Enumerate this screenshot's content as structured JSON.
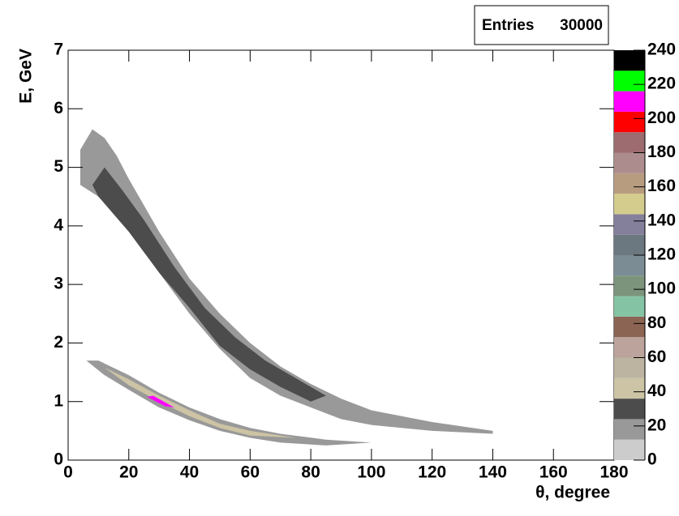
{
  "chart_data": {
    "type": "contour",
    "xlabel": "θ, degree",
    "ylabel": "E, GeV",
    "stats": {
      "label": "Entries",
      "value": 30000
    },
    "xlim": [
      0,
      180
    ],
    "xticks": [
      0,
      20,
      40,
      60,
      80,
      100,
      120,
      140,
      160,
      180
    ],
    "ylim": [
      0,
      7
    ],
    "yticks": [
      0,
      1,
      2,
      3,
      4,
      5,
      6,
      7
    ],
    "colorbar": {
      "levels": [
        0,
        12,
        24,
        36,
        48,
        60,
        72,
        84,
        96,
        108,
        120,
        132,
        144,
        156,
        168,
        180,
        192,
        204,
        216,
        228,
        240
      ],
      "colors": [
        "#cccccc",
        "#999999",
        "#4c4c4c",
        "#ccc4a4",
        "#bcb4a0",
        "#bca49c",
        "#8c6454",
        "#84c4a4",
        "#7c947c",
        "#7c8c94",
        "#6c7880",
        "#84809c",
        "#d4cc8c",
        "#b89c80",
        "#ac8c8c",
        "#9c6c70",
        "#ff0000",
        "#ff00ff",
        "#00ff00",
        "#000000"
      ],
      "ticks": [
        0,
        20,
        40,
        60,
        80,
        100,
        120,
        140,
        160,
        180,
        200,
        220,
        240
      ]
    },
    "regions": [
      {
        "value": 12,
        "x": [
          8,
          12,
          16,
          20,
          30,
          40,
          50,
          60,
          70,
          80,
          90,
          100,
          110,
          120,
          140,
          140,
          120,
          100,
          90,
          80,
          70,
          60,
          50,
          40,
          30,
          20,
          10,
          4,
          4
        ],
        "y": [
          5.65,
          5.5,
          5.2,
          4.8,
          3.9,
          3.1,
          2.5,
          2.0,
          1.6,
          1.3,
          1.05,
          0.85,
          0.75,
          0.65,
          0.5,
          0.45,
          0.5,
          0.6,
          0.7,
          0.9,
          1.1,
          1.4,
          1.9,
          2.5,
          3.2,
          4.0,
          4.5,
          4.7,
          5.3
        ]
      },
      {
        "value": 24,
        "x": [
          12,
          18,
          25,
          35,
          45,
          55,
          65,
          75,
          85,
          80,
          70,
          60,
          50,
          40,
          30,
          20,
          10,
          8
        ],
        "y": [
          5.0,
          4.6,
          4.1,
          3.3,
          2.6,
          2.1,
          1.7,
          1.4,
          1.1,
          1.0,
          1.25,
          1.55,
          1.95,
          2.6,
          3.2,
          3.9,
          4.5,
          4.7
        ]
      },
      {
        "value": 12,
        "x": [
          6,
          10,
          20,
          30,
          40,
          50,
          60,
          70,
          85,
          100,
          85,
          70,
          60,
          50,
          40,
          30,
          20,
          12
        ],
        "y": [
          1.7,
          1.7,
          1.45,
          1.15,
          0.9,
          0.7,
          0.55,
          0.45,
          0.35,
          0.3,
          0.25,
          0.3,
          0.38,
          0.5,
          0.68,
          0.9,
          1.2,
          1.45
        ]
      },
      {
        "value": 36,
        "x": [
          12,
          20,
          30,
          40,
          50,
          60,
          75,
          60,
          50,
          40,
          30,
          20
        ],
        "y": [
          1.58,
          1.38,
          1.1,
          0.85,
          0.62,
          0.5,
          0.38,
          0.42,
          0.55,
          0.75,
          1.0,
          1.28
        ]
      },
      {
        "value": 204,
        "x": [
          28,
          35,
          32,
          26
        ],
        "y": [
          1.1,
          0.9,
          0.92,
          1.08
        ]
      }
    ]
  }
}
